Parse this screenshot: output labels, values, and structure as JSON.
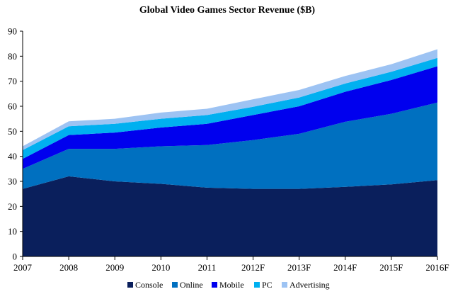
{
  "chart_data": {
    "type": "area",
    "stacked": true,
    "title": "Global Video Games Sector Revenue ($B)",
    "xlabel": "",
    "ylabel": "",
    "ylim": [
      0,
      90
    ],
    "yticks": [
      0,
      10,
      20,
      30,
      40,
      50,
      60,
      70,
      80,
      90
    ],
    "categories": [
      "2007",
      "2008",
      "2009",
      "2010",
      "2011",
      "2012F",
      "2013F",
      "2014F",
      "2015F",
      "2016F"
    ],
    "grid": false,
    "legend_position": "bottom",
    "series": [
      {
        "name": "Console",
        "color": "#0a1f5c",
        "values": [
          27.0,
          32.0,
          30.0,
          29.0,
          27.5,
          27.0,
          27.0,
          27.8,
          28.8,
          30.5
        ]
      },
      {
        "name": "Online",
        "color": "#0070c0",
        "values": [
          8.0,
          11.0,
          13.0,
          15.0,
          17.0,
          19.5,
          22.0,
          26.0,
          28.2,
          31.0
        ]
      },
      {
        "name": "Mobile",
        "color": "#0000ee",
        "values": [
          4.0,
          5.5,
          6.5,
          7.5,
          8.5,
          10.0,
          11.0,
          12.0,
          13.5,
          14.5
        ]
      },
      {
        "name": "PC",
        "color": "#00b0f0",
        "values": [
          3.5,
          3.5,
          3.5,
          3.5,
          3.5,
          3.3,
          3.5,
          3.3,
          3.3,
          3.3
        ]
      },
      {
        "name": "Advertising",
        "color": "#9dc3f3",
        "values": [
          1.5,
          2.0,
          2.0,
          2.5,
          2.5,
          3.0,
          3.0,
          3.0,
          3.0,
          3.5
        ]
      }
    ]
  }
}
